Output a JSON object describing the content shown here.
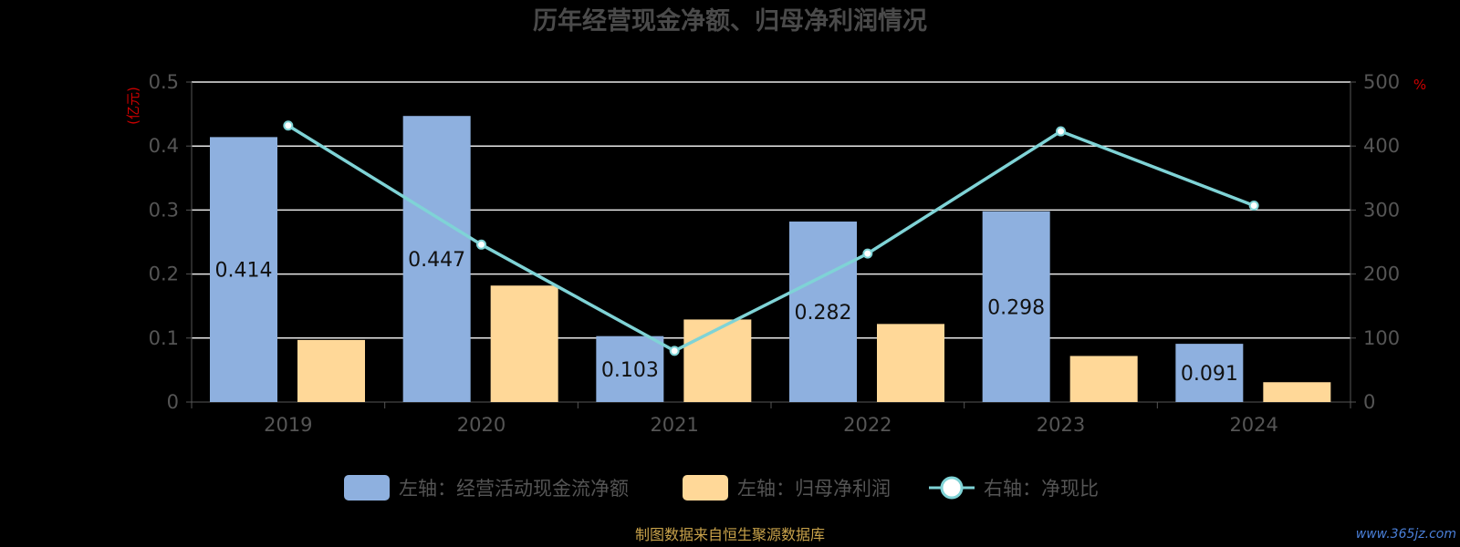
{
  "chart_data": {
    "type": "bar",
    "title": "历年经营现金净额、归母净利润情况",
    "categories": [
      "2019",
      "2020",
      "2021",
      "2022",
      "2023",
      "2024"
    ],
    "series": [
      {
        "name": "左轴：经营活动现金流净额",
        "axis": "left",
        "type": "bar",
        "color": "#8eb0df",
        "values": [
          0.414,
          0.447,
          0.103,
          0.282,
          0.298,
          0.091
        ]
      },
      {
        "name": "左轴：归母净利润",
        "axis": "left",
        "type": "bar",
        "color": "#ffd898",
        "values": [
          0.097,
          0.182,
          0.129,
          0.122,
          0.072,
          0.031
        ]
      },
      {
        "name": "右轴：净现比",
        "axis": "right",
        "type": "line",
        "color": "#7fd3d6",
        "values": [
          432,
          246,
          80,
          232,
          423,
          307
        ]
      }
    ],
    "left_axis": {
      "unit_label": "(亿元)",
      "ylim": [
        0,
        0.5
      ],
      "ticks": [
        "0",
        "0.1",
        "0.2",
        "0.3",
        "0.4",
        "0.5"
      ]
    },
    "right_axis": {
      "unit_label": "%",
      "ylim": [
        0,
        500
      ],
      "ticks": [
        "0",
        "100",
        "200",
        "300",
        "400",
        "500"
      ]
    },
    "data_labels_series": 0,
    "grid": true,
    "legend_position": "bottom"
  },
  "footer": {
    "source": "制图数据来自恒生聚源数据库",
    "watermark": "www.365jz.com"
  }
}
